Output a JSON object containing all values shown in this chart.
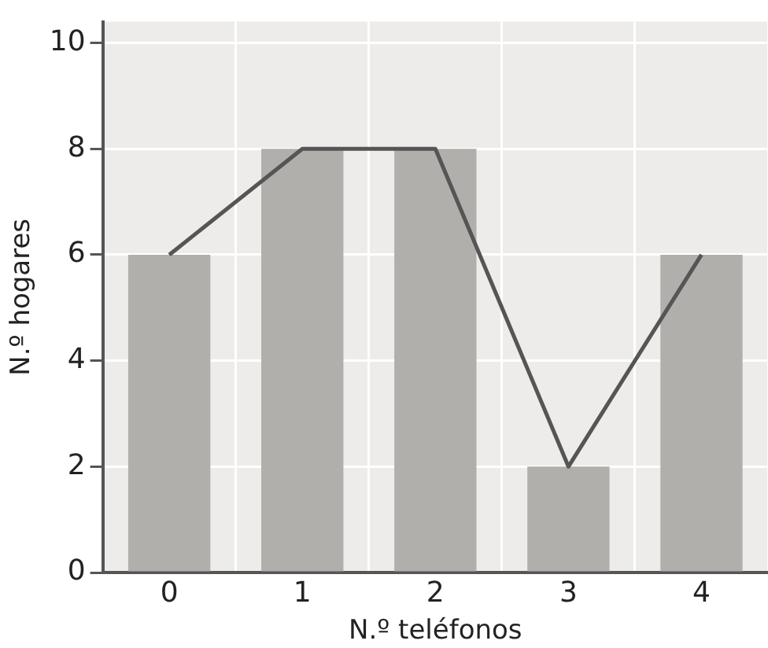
{
  "chart_data": {
    "type": "bar",
    "xlabel": "N.º teléfonos",
    "ylabel": "N.º hogares",
    "categories": [
      "0",
      "1",
      "2",
      "3",
      "4"
    ],
    "series": [
      {
        "color": "#b0afab",
        "values": [
          6,
          8,
          8,
          2,
          6
        ]
      },
      {
        "type": "line",
        "color": "#555555",
        "values": [
          6,
          8,
          8,
          2,
          6
        ]
      }
    ],
    "ylim": [
      0,
      10.4
    ],
    "yticks": [
      0,
      2,
      4,
      6,
      8,
      10
    ],
    "grid": true,
    "legend": false,
    "marker": "none"
  }
}
